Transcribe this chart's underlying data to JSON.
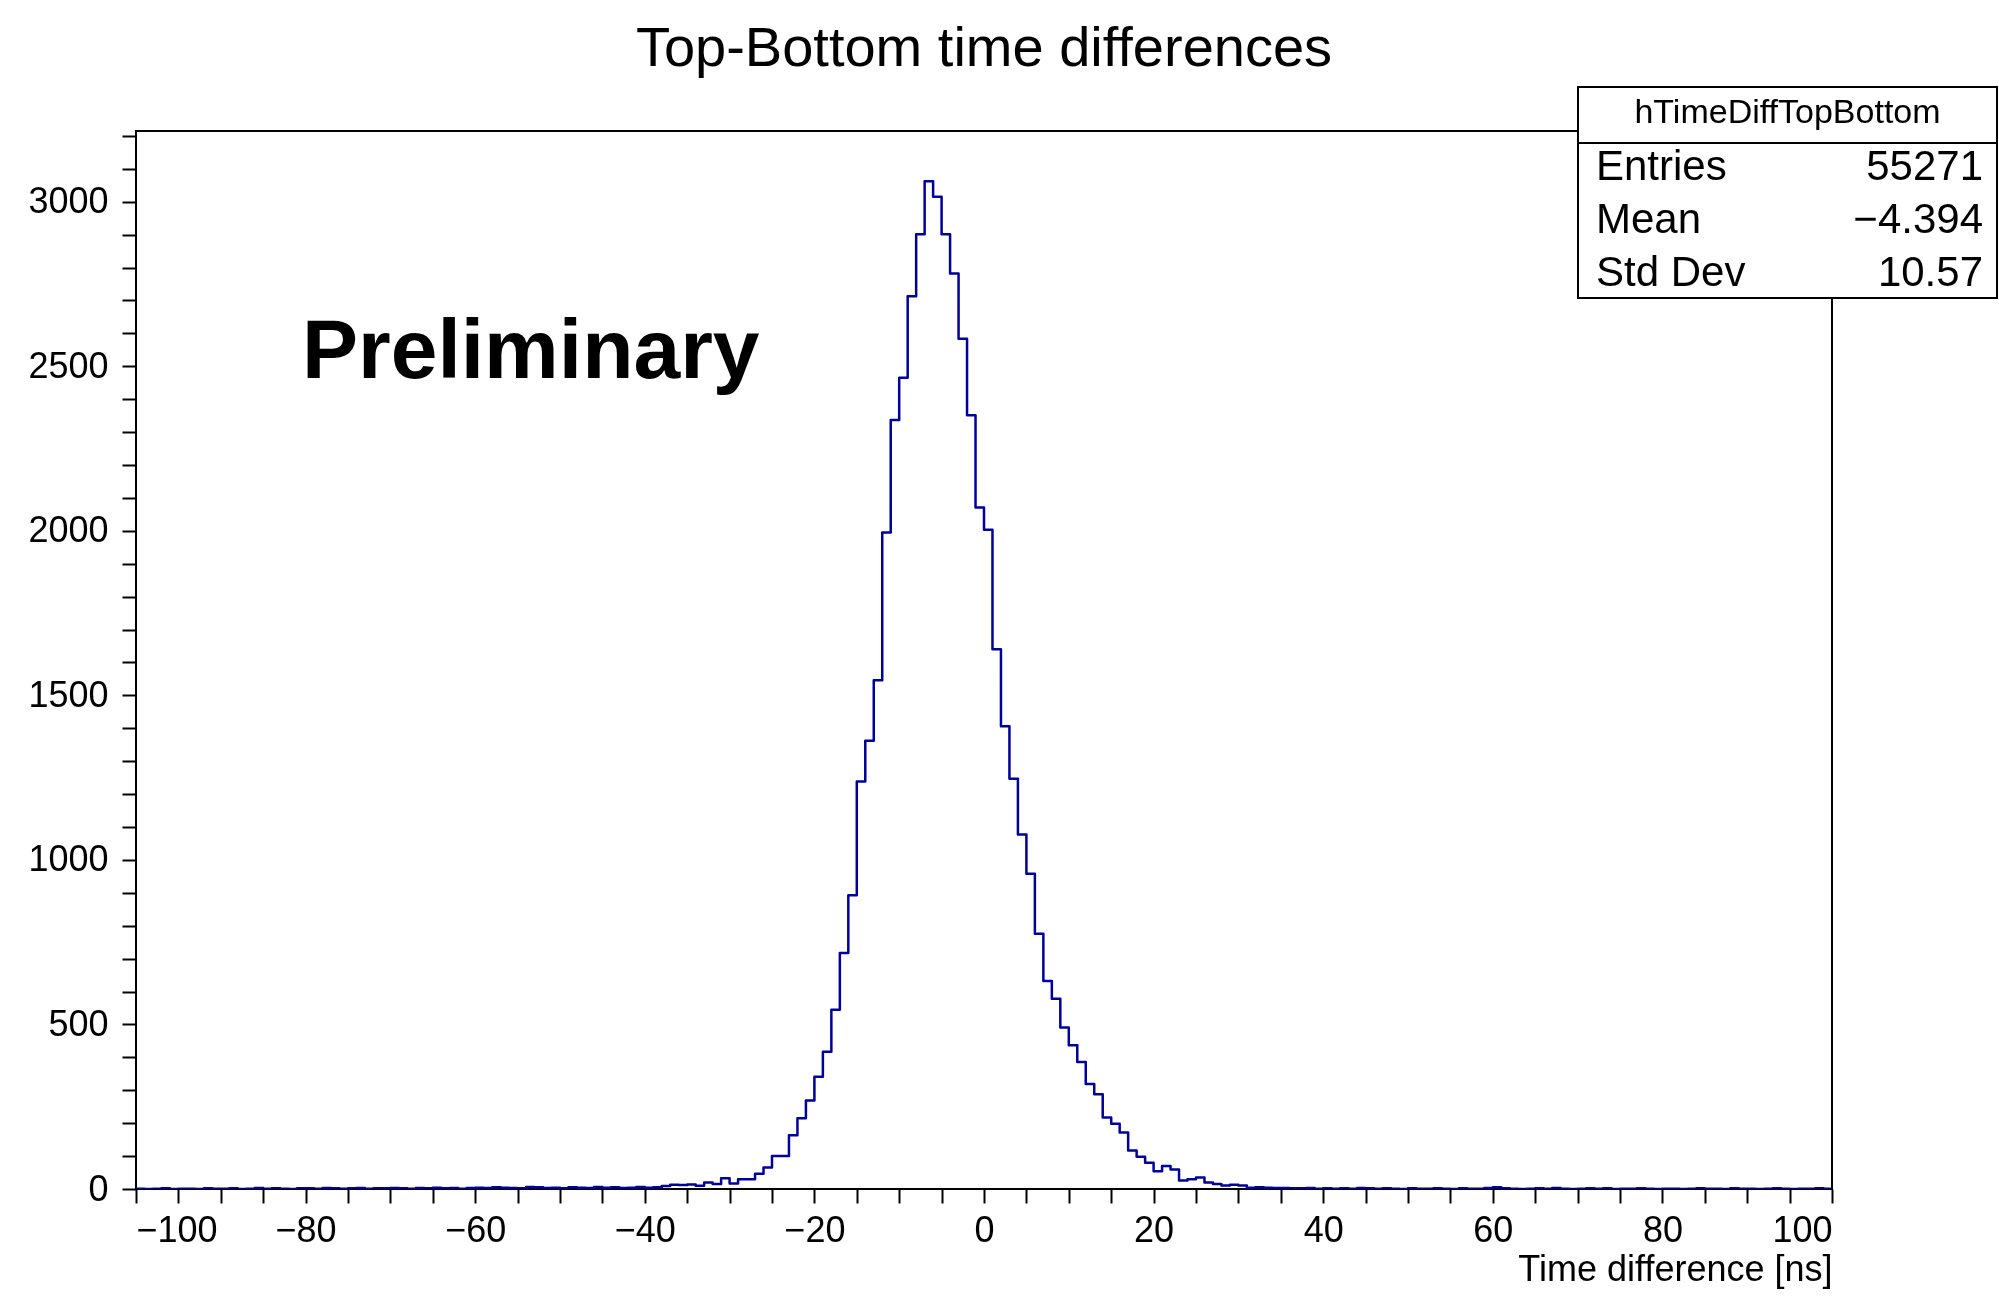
{
  "chart_data": {
    "type": "histogram",
    "title": "Top-Bottom time differences",
    "xlabel": "Time difference [ns]",
    "annotations": [
      "Preliminary",
      "hTimeDiffTopBottom",
      "Entries",
      "55271",
      "Mean",
      "−4.394",
      "Std Dev",
      "10.57"
    ],
    "color": "#000099",
    "grid": false,
    "xlim": [
      -100,
      100
    ],
    "ylim": [
      0,
      3215
    ],
    "xticks": [
      -100,
      {
        "value": -95,
        "label": null
      },
      {
        "value": -90,
        "label": null
      },
      {
        "value": -85,
        "label": null
      },
      -80,
      {
        "value": -75,
        "label": null
      },
      {
        "value": -70,
        "label": null
      },
      {
        "value": -65,
        "label": null
      },
      -60,
      {
        "value": -55,
        "label": null
      },
      {
        "value": -50,
        "label": null
      },
      {
        "value": -45,
        "label": null
      },
      -40,
      {
        "value": -35,
        "label": null
      },
      {
        "value": -30,
        "label": null
      },
      {
        "value": -25,
        "label": null
      },
      -20,
      {
        "value": -15,
        "label": null
      },
      {
        "value": -10,
        "label": null
      },
      {
        "value": -5,
        "label": null
      },
      0,
      {
        "value": 5,
        "label": null
      },
      {
        "value": 10,
        "label": null
      },
      {
        "value": 15,
        "label": null
      },
      20,
      {
        "value": 25,
        "label": null
      },
      {
        "value": 30,
        "label": null
      },
      {
        "value": 35,
        "label": null
      },
      40,
      {
        "value": 45,
        "label": null
      },
      {
        "value": 50,
        "label": null
      },
      {
        "value": 55,
        "label": null
      },
      60,
      {
        "value": 65,
        "label": null
      },
      {
        "value": 70,
        "label": null
      },
      {
        "value": 75,
        "label": null
      },
      80,
      {
        "value": 85,
        "label": null
      },
      {
        "value": 90,
        "label": null
      },
      {
        "value": 95,
        "label": null
      },
      100
    ],
    "yticks": [
      0,
      {
        "value": 100,
        "label": null
      },
      {
        "value": 200,
        "label": null
      },
      {
        "value": 300,
        "label": null
      },
      {
        "value": 400,
        "label": null
      },
      500,
      {
        "value": 600,
        "label": null
      },
      {
        "value": 700,
        "label": null
      },
      {
        "value": 800,
        "label": null
      },
      {
        "value": 900,
        "label": null
      },
      1000,
      {
        "value": 1100,
        "label": null
      },
      {
        "value": 1200,
        "label": null
      },
      {
        "value": 1300,
        "label": null
      },
      {
        "value": 1400,
        "label": null
      },
      1500,
      {
        "value": 1600,
        "label": null
      },
      {
        "value": 1700,
        "label": null
      },
      {
        "value": 1800,
        "label": null
      },
      {
        "value": 1900,
        "label": null
      },
      2000,
      {
        "value": 2100,
        "label": null
      },
      {
        "value": 2200,
        "label": null
      },
      {
        "value": 2300,
        "label": null
      },
      {
        "value": 2400,
        "label": null
      },
      2500,
      {
        "value": 2600,
        "label": null
      },
      {
        "value": 2700,
        "label": null
      },
      {
        "value": 2800,
        "label": null
      },
      {
        "value": 2900,
        "label": null
      },
      3000,
      {
        "value": 3100,
        "label": null
      },
      {
        "value": 3200,
        "label": null
      }
    ],
    "bins": [
      -100,
      -99,
      -98,
      -97,
      -96,
      -95,
      -94,
      -93,
      -92,
      -91,
      -90,
      -89,
      -88,
      -87,
      -86,
      -85,
      -84,
      -83,
      -82,
      -81,
      -80,
      -79,
      -78,
      -77,
      -76,
      -75,
      -74,
      -73,
      -72,
      -71,
      -70,
      -69,
      -68,
      -67,
      -66,
      -65,
      -64,
      -63,
      -62,
      -61,
      -60,
      -59,
      -58,
      -57,
      -56,
      -55,
      -54,
      -53,
      -52,
      -51,
      -50,
      -49,
      -48,
      -47,
      -46,
      -45,
      -44,
      -43,
      -42,
      -41,
      -40,
      -39,
      -38,
      -37,
      -36,
      -35,
      -34,
      -33,
      -32,
      -31,
      -30,
      -29,
      -28,
      -27,
      -26,
      -25,
      -24,
      -23,
      -22,
      -21,
      -20,
      -19,
      -18,
      -17,
      -16,
      -15,
      -14,
      -13,
      -12,
      -11,
      -10,
      -9,
      -8,
      -7,
      -6,
      -5,
      -4,
      -3,
      -2,
      -1,
      0,
      1,
      2,
      3,
      4,
      5,
      6,
      7,
      8,
      9,
      10,
      11,
      12,
      13,
      14,
      15,
      16,
      17,
      18,
      19,
      20,
      21,
      22,
      23,
      24,
      25,
      26,
      27,
      28,
      29,
      30,
      31,
      32,
      33,
      34,
      35,
      36,
      37,
      38,
      39,
      40,
      41,
      42,
      43,
      44,
      45,
      46,
      47,
      48,
      49,
      50,
      51,
      52,
      53,
      54,
      55,
      56,
      57,
      58,
      59,
      60,
      61,
      62,
      63,
      64,
      65,
      66,
      67,
      68,
      69,
      70,
      71,
      72,
      73,
      74,
      75,
      76,
      77,
      78,
      79,
      80,
      81,
      82,
      83,
      84,
      85,
      86,
      87,
      88,
      89,
      90,
      91,
      92,
      93,
      94,
      95,
      96,
      97,
      98,
      99,
      100
    ],
    "values": [
      1,
      0,
      1,
      2,
      0,
      1,
      1,
      0,
      2,
      1,
      1,
      2,
      0,
      1,
      3,
      1,
      2,
      1,
      0,
      2,
      2,
      1,
      3,
      2,
      1,
      2,
      3,
      1,
      2,
      2,
      3,
      2,
      1,
      3,
      2,
      4,
      2,
      3,
      1,
      3,
      4,
      3,
      5,
      4,
      3,
      2,
      6,
      5,
      3,
      4,
      2,
      5,
      4,
      3,
      6,
      4,
      5,
      3,
      4,
      6,
      4,
      5,
      9,
      13,
      12,
      14,
      10,
      20,
      15,
      33,
      17,
      30,
      30,
      46,
      65,
      100,
      100,
      163,
      215,
      269,
      341,
      417,
      545,
      717,
      893,
      1238,
      1362,
      1546,
      1995,
      2337,
      2465,
      2713,
      2901,
      3062,
      3015,
      2901,
      2782,
      2584,
      2351,
      2071,
      2003,
      1640,
      1406,
      1247,
      1077,
      958,
      776,
      632,
      578,
      491,
      437,
      386,
      319,
      288,
      217,
      198,
      172,
      117,
      98,
      80,
      54,
      70,
      59,
      26,
      30,
      35,
      20,
      15,
      11,
      13,
      11,
      4,
      5,
      4,
      3,
      3,
      2,
      2,
      3,
      1,
      2,
      1,
      2,
      1,
      3,
      2,
      1,
      2,
      1,
      0,
      2,
      1,
      1,
      2,
      1,
      0,
      2,
      1,
      1,
      3,
      5,
      2,
      1,
      0,
      1,
      2,
      1,
      3,
      1,
      0,
      1,
      2,
      1,
      2,
      0,
      1,
      1,
      2,
      1,
      0,
      1,
      1,
      0,
      1,
      2,
      1,
      1,
      0,
      2,
      1,
      1,
      0,
      1,
      2,
      1,
      0,
      1,
      1,
      2,
      1
    ]
  }
}
